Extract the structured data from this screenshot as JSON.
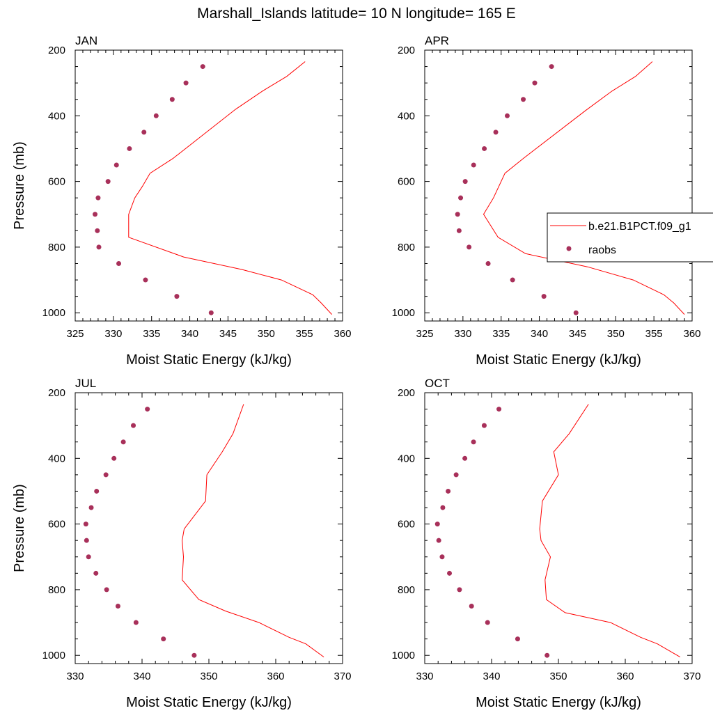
{
  "figure_title": "Marshall_Islands  latitude= 10 N longitude= 165 E",
  "colors": {
    "model": "#ff0000",
    "obs": "#a8305a",
    "axis": "#000000"
  },
  "legend": {
    "entries": [
      {
        "label": "b.e21.B1PCT.f09_g1",
        "style": "line",
        "color": "#ff0000"
      },
      {
        "label": "raobs",
        "style": "marker",
        "color": "#a8305a"
      }
    ],
    "placement": "right of APR panel"
  },
  "chart_data": [
    {
      "type": "line",
      "panel": "JAN",
      "xlabel": "Moist Static Energy (kJ/kg)",
      "ylabel": "Pressure (mb)",
      "xlim": [
        325,
        360
      ],
      "ylim": [
        200,
        1025
      ],
      "xticks": [
        325,
        330,
        335,
        340,
        345,
        350,
        355,
        360
      ],
      "yticks": [
        200,
        400,
        600,
        800,
        1000
      ],
      "series": [
        {
          "name": "b.e21.B1PCT.f09_g1",
          "kind": "line",
          "x": [
            358.6,
            357.2,
            356.1,
            352.0,
            346.8,
            339.2,
            332.0,
            332.0,
            332.8,
            333.8,
            334.8,
            337.8,
            346.0,
            349.5,
            352.7,
            355.1
          ],
          "y": [
            1005,
            970,
            945,
            900,
            868,
            830,
            770,
            700,
            650,
            615,
            575,
            530,
            380,
            325,
            280,
            235
          ]
        },
        {
          "name": "raobs",
          "kind": "scatter",
          "x": [
            342.8,
            338.3,
            334.2,
            330.7,
            328.1,
            327.9,
            327.6,
            328.0,
            329.3,
            330.4,
            332.1,
            334.0,
            335.6,
            337.7,
            339.5,
            341.7
          ],
          "y": [
            1000,
            950,
            900,
            850,
            800,
            750,
            700,
            650,
            600,
            550,
            500,
            450,
            400,
            350,
            300,
            250
          ]
        }
      ]
    },
    {
      "type": "line",
      "panel": "APR",
      "xlabel": "Moist Static Energy (kJ/kg)",
      "ylabel": "",
      "xlim": [
        325,
        360
      ],
      "ylim": [
        200,
        1025
      ],
      "xticks": [
        325,
        330,
        335,
        340,
        345,
        350,
        355,
        360
      ],
      "yticks": [
        200,
        400,
        600,
        800,
        1000
      ],
      "series": [
        {
          "name": "b.e21.B1PCT.f09_g1",
          "kind": "line",
          "x": [
            359.0,
            357.6,
            356.3,
            352.3,
            346.3,
            338.2,
            334.6,
            332.7,
            334.0,
            334.7,
            335.5,
            337.9,
            346.0,
            349.5,
            352.6,
            354.8
          ],
          "y": [
            1005,
            970,
            945,
            900,
            860,
            820,
            770,
            700,
            650,
            615,
            575,
            530,
            385,
            325,
            280,
            235
          ]
        },
        {
          "name": "raobs",
          "kind": "scatter",
          "x": [
            344.8,
            340.6,
            336.5,
            333.3,
            330.8,
            329.5,
            329.3,
            329.7,
            330.3,
            331.4,
            332.8,
            334.3,
            335.8,
            337.9,
            339.4,
            341.6
          ],
          "y": [
            1000,
            950,
            900,
            850,
            800,
            750,
            700,
            650,
            600,
            550,
            500,
            450,
            400,
            350,
            300,
            250
          ]
        }
      ]
    },
    {
      "type": "line",
      "panel": "JUL",
      "xlabel": "Moist Static Energy (kJ/kg)",
      "ylabel": "Pressure (mb)",
      "xlim": [
        330,
        370
      ],
      "ylim": [
        200,
        1025
      ],
      "xticks": [
        330,
        340,
        350,
        360,
        370
      ],
      "yticks": [
        200,
        400,
        600,
        800,
        1000
      ],
      "series": [
        {
          "name": "b.e21.B1PCT.f09_g1",
          "kind": "line",
          "x": [
            367.2,
            364.5,
            362.0,
            357.5,
            352.5,
            348.5,
            346.0,
            346.2,
            346.0,
            346.3,
            349.5,
            349.7,
            352.0,
            353.6,
            355.2
          ],
          "y": [
            1005,
            965,
            945,
            900,
            865,
            830,
            770,
            700,
            650,
            615,
            530,
            450,
            380,
            325,
            235
          ]
        },
        {
          "name": "raobs",
          "kind": "scatter",
          "x": [
            347.8,
            343.2,
            339.1,
            336.4,
            334.7,
            333.1,
            332.0,
            331.7,
            331.6,
            332.4,
            333.2,
            334.6,
            335.8,
            337.2,
            338.7,
            340.8
          ],
          "y": [
            1000,
            950,
            900,
            850,
            800,
            750,
            700,
            650,
            600,
            550,
            500,
            450,
            400,
            350,
            300,
            250
          ]
        }
      ]
    },
    {
      "type": "line",
      "panel": "OCT",
      "xlabel": "Moist Static Energy (kJ/kg)",
      "ylabel": "",
      "xlim": [
        330,
        370
      ],
      "ylim": [
        200,
        1025
      ],
      "xticks": [
        330,
        340,
        350,
        360,
        370
      ],
      "yticks": [
        200,
        400,
        600,
        800,
        1000
      ],
      "series": [
        {
          "name": "b.e21.B1PCT.f09_g1",
          "kind": "line",
          "x": [
            368.2,
            364.8,
            362.3,
            357.8,
            351.0,
            348.2,
            348.0,
            348.8,
            347.4,
            347.2,
            347.6,
            350.0,
            349.3,
            351.6,
            354.5
          ],
          "y": [
            1005,
            965,
            945,
            900,
            870,
            830,
            770,
            700,
            650,
            615,
            530,
            450,
            380,
            325,
            235
          ]
        },
        {
          "name": "raobs",
          "kind": "scatter",
          "x": [
            348.3,
            343.9,
            339.4,
            337.0,
            335.2,
            333.7,
            332.6,
            332.1,
            331.9,
            332.7,
            333.5,
            334.7,
            336.0,
            337.3,
            338.9,
            341.1
          ],
          "y": [
            1000,
            950,
            900,
            850,
            800,
            750,
            700,
            650,
            600,
            550,
            500,
            450,
            400,
            350,
            300,
            250
          ]
        }
      ]
    }
  ]
}
